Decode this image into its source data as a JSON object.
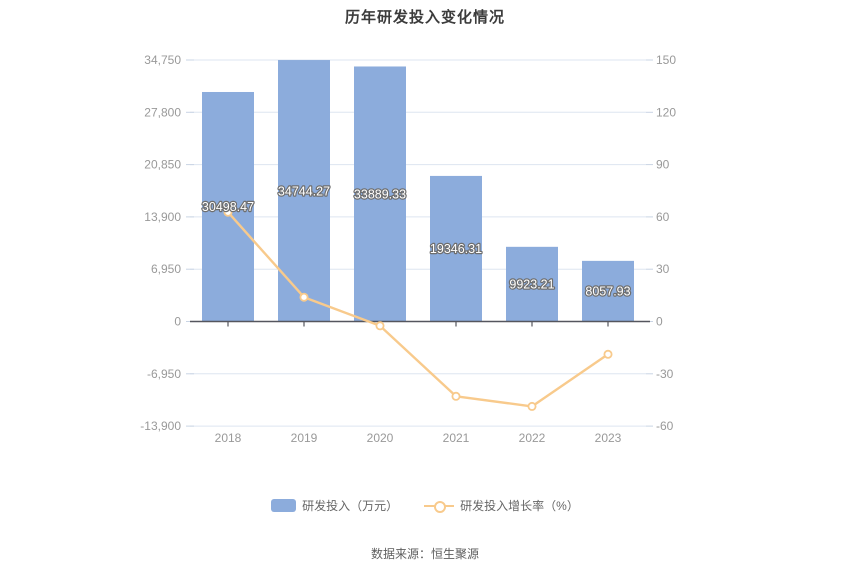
{
  "title": "历年研发投入变化情况",
  "footer": {
    "source": "数据来源：恒生聚源"
  },
  "legend": {
    "items": [
      {
        "label": "研发投入（万元）",
        "type": "bar",
        "color": "#8CACDC"
      },
      {
        "label": "研发投入增长率（%）",
        "type": "line",
        "color": "#F8CA8C"
      }
    ]
  },
  "colors": {
    "bar": "#8CACDC",
    "line": "#F8CA8C",
    "grid": "#dde5f0",
    "axis_tick": "#c9d4e4",
    "zero_axis": "#55565e",
    "axis_label": "#999999",
    "bar_label_fill": "#ffffff",
    "bar_label_stroke": "#6e6e6e",
    "title": "#3c3c3c"
  },
  "chart_data": {
    "type": "bar",
    "title": "历年研发投入变化情况",
    "categories": [
      "2018",
      "2019",
      "2020",
      "2021",
      "2022",
      "2023"
    ],
    "series": [
      {
        "name": "研发投入（万元）",
        "type": "bar",
        "axis": "left",
        "values": [
          30498.47,
          34744.27,
          33889.33,
          19346.31,
          9923.21,
          8057.93
        ],
        "labels": [
          "30498.47",
          "34744.27",
          "33889.33",
          "19346.31",
          "9923.21",
          "8057.93"
        ]
      },
      {
        "name": "研发投入增长率（%）",
        "type": "line",
        "axis": "right",
        "values": [
          62.7,
          13.92,
          -2.46,
          -42.91,
          -48.71,
          -18.8
        ]
      }
    ],
    "left_axis": {
      "ticks": [
        "34,750",
        "27,800",
        "20,850",
        "13,900",
        "6,950",
        "0",
        "-6,950",
        "-13,900"
      ],
      "tick_values": [
        34750,
        27800,
        20850,
        13900,
        6950,
        0,
        -6950,
        -13900
      ],
      "max": 34750,
      "min": -13900,
      "interval": 6950
    },
    "right_axis": {
      "ticks": [
        "150",
        "120",
        "90",
        "60",
        "30",
        "0",
        "-30",
        "-60"
      ],
      "tick_values": [
        150,
        120,
        90,
        60,
        30,
        0,
        -30,
        -60
      ],
      "max": 150,
      "min": -60,
      "interval": 30
    },
    "grid": true,
    "legend_position": "bottom"
  }
}
